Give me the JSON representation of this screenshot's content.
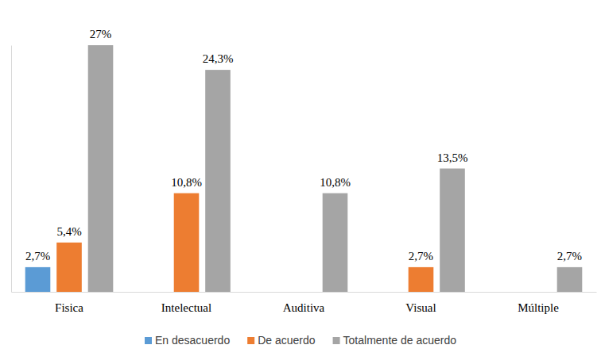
{
  "chart_data": {
    "type": "bar",
    "categories": [
      "Fisica",
      "Intelectual",
      "Auditiva",
      "Visual",
      "Múltiple"
    ],
    "series": [
      {
        "name": "En desacuerdo",
        "color": "#5b9bd5",
        "values": [
          2.7,
          null,
          null,
          null,
          null
        ],
        "value_labels": [
          "2,7%",
          null,
          null,
          null,
          null
        ]
      },
      {
        "name": "De acuerdo",
        "color": "#ed7d31",
        "values": [
          5.4,
          10.8,
          null,
          2.7,
          null
        ],
        "value_labels": [
          "5,4%",
          "10,8%",
          null,
          "2,7%",
          null
        ]
      },
      {
        "name": "Totalmente de acuerdo",
        "color": "#a5a5a5",
        "values": [
          27,
          24.3,
          10.8,
          13.5,
          2.7
        ],
        "value_labels": [
          "27%",
          "24,3%",
          "10,8%",
          "13,5%",
          "2,7%"
        ]
      }
    ],
    "ylim": [
      0,
      27
    ],
    "data_labels": true,
    "tick_labels": "x",
    "grid": false,
    "legend": "bottom"
  }
}
